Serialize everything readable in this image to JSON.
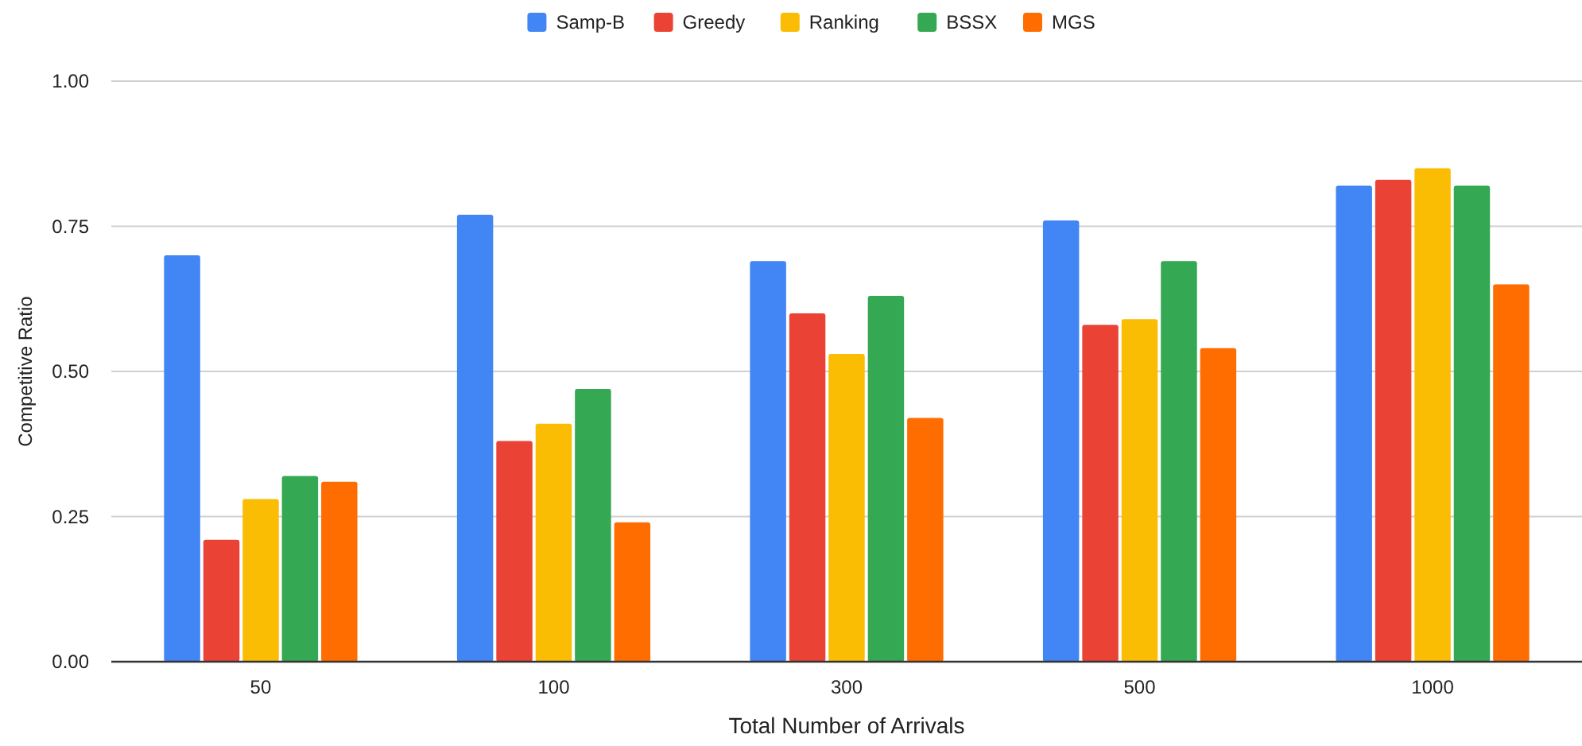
{
  "chart_data": {
    "type": "bar",
    "xlabel": "Total Number of Arrivals",
    "ylabel": "Competitive Ratio",
    "categories": [
      "50",
      "100",
      "300",
      "500",
      "1000"
    ],
    "series": [
      {
        "name": "Samp-B",
        "color": "#4285f4",
        "values": [
          0.7,
          0.77,
          0.69,
          0.76,
          0.82
        ]
      },
      {
        "name": "Greedy",
        "color": "#ea4335",
        "values": [
          0.21,
          0.38,
          0.6,
          0.58,
          0.83
        ]
      },
      {
        "name": "Ranking",
        "color": "#fbbc04",
        "values": [
          0.28,
          0.41,
          0.53,
          0.59,
          0.85
        ]
      },
      {
        "name": "BSSX",
        "color": "#34a853",
        "values": [
          0.32,
          0.47,
          0.63,
          0.69,
          0.82
        ]
      },
      {
        "name": "MGS",
        "color": "#ff6d01",
        "values": [
          0.31,
          0.24,
          0.42,
          0.54,
          0.65
        ]
      }
    ],
    "ylim": [
      0,
      1
    ],
    "yticks": [
      {
        "value": 0,
        "label": "0.00"
      },
      {
        "value": 0.25,
        "label": "0.25"
      },
      {
        "value": 0.5,
        "label": "0.50"
      },
      {
        "value": 0.75,
        "label": "0.75"
      },
      {
        "value": 1,
        "label": "1.00"
      }
    ],
    "grid": "y",
    "legend": "top"
  }
}
